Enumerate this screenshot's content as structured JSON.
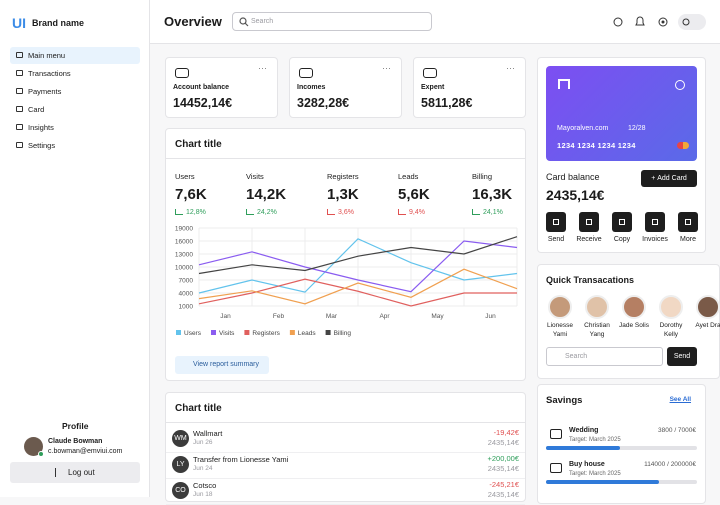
{
  "brand": {
    "logo": "UI",
    "name": "Brand name"
  },
  "menu": [
    "Main menu",
    "Transactions",
    "Payments",
    "Card",
    "Insights",
    "Settings"
  ],
  "profile": {
    "heading": "Profile",
    "name": "Claude Bowman",
    "email": "c.bowman@emviui.com",
    "logout": "Log out"
  },
  "header": {
    "title": "Overview",
    "search_placeholder": "Search"
  },
  "stats": [
    {
      "label": "Account balance",
      "value": "14452,14€"
    },
    {
      "label": "Incomes",
      "value": "3282,28€"
    },
    {
      "label": "Expent",
      "value": "5811,28€"
    }
  ],
  "chart_card": {
    "title": "Chart title",
    "button": "View report summary",
    "metrics": [
      {
        "label": "Users",
        "value": "7,6K",
        "change": "12,8%",
        "trend": "up"
      },
      {
        "label": "Visits",
        "value": "14,2K",
        "change": "24,2%",
        "trend": "up"
      },
      {
        "label": "Registers",
        "value": "1,3K",
        "change": "3,6%",
        "trend": "down"
      },
      {
        "label": "Leads",
        "value": "5,6K",
        "change": "9,4%",
        "trend": "down"
      },
      {
        "label": "Billing",
        "value": "16,3K",
        "change": "24,1%",
        "trend": "up"
      }
    ]
  },
  "chart_data": {
    "type": "line",
    "categories": [
      "Jan",
      "Feb",
      "Mar",
      "Apr",
      "May",
      "Jun",
      null
    ],
    "series": [
      {
        "name": "Users",
        "color": "#62c3ec",
        "values": [
          4000,
          7000,
          4200,
          16500,
          11000,
          7000,
          8500
        ]
      },
      {
        "name": "Visits",
        "color": "#8a5cf0",
        "values": [
          10500,
          13500,
          10000,
          7000,
          4300,
          16000,
          14500
        ]
      },
      {
        "name": "Registers",
        "color": "#e0605e",
        "values": [
          1500,
          4000,
          7200,
          4400,
          1000,
          4000,
          4000
        ]
      },
      {
        "name": "Leads",
        "color": "#f0a050",
        "values": [
          2700,
          4500,
          1500,
          6300,
          3000,
          9500,
          5000
        ]
      },
      {
        "name": "Billing",
        "color": "#444444",
        "values": [
          8500,
          10500,
          9200,
          12500,
          14500,
          13000,
          17000
        ]
      }
    ],
    "ylim": [
      1000,
      19000
    ],
    "yticks": [
      19000,
      16000,
      13000,
      10000,
      7000,
      4000,
      1000
    ],
    "grid": true
  },
  "transactions": {
    "title": "Chart title",
    "rows": [
      {
        "initials": "WM",
        "name": "Wallmart",
        "date": "Jun 26",
        "amount": "-19,42€",
        "balance": "2435,14€",
        "trend": "down"
      },
      {
        "initials": "LY",
        "name": "Transfer from Lionesse Yami",
        "date": "Jun 24",
        "amount": "+200,00€",
        "balance": "2435,14€",
        "trend": "up"
      },
      {
        "initials": "CO",
        "name": "Cotsco",
        "date": "Jun 18",
        "amount": "-245,21€",
        "balance": "2435,14€",
        "trend": "down"
      }
    ]
  },
  "card": {
    "brand": "Mayoralven.com",
    "expiry": "12/28",
    "number": "1234 1234 1234 1234",
    "balance_label": "Card balance",
    "balance": "2435,14€",
    "add_button": "Add Card",
    "actions": [
      "Send",
      "Receive",
      "Copy",
      "Invoices",
      "More"
    ]
  },
  "quick": {
    "title": "Quick Transacations",
    "contacts": [
      "Lionesse Yami",
      "Christian Yang",
      "Jade Solis",
      "Dorothy Kelly",
      "Ayet Dra"
    ],
    "search_placeholder": "Search",
    "send": "Send"
  },
  "savings": {
    "title": "Savings",
    "see_all": "See All",
    "goals": [
      {
        "name": "Wedding",
        "target": "Target: March 2025",
        "amount": "3800 / 7000€"
      },
      {
        "name": "Buy house",
        "target": "Target: March 2025",
        "amount": "114000 / 200000€"
      }
    ]
  }
}
